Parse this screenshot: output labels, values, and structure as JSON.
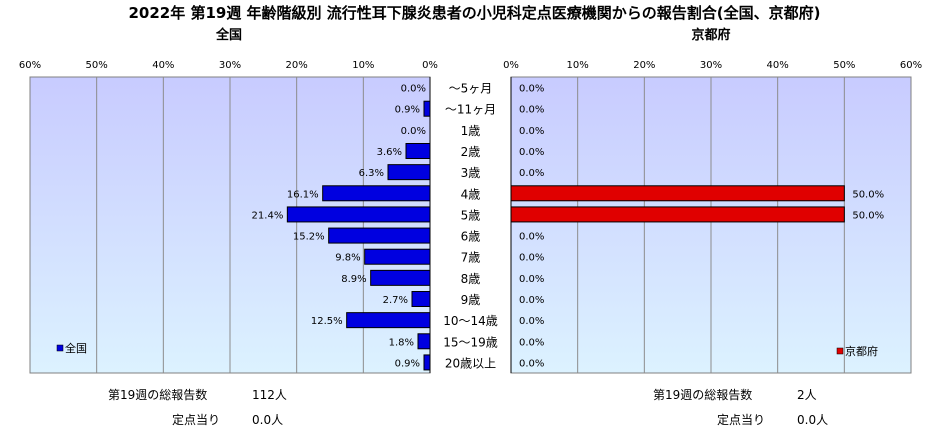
{
  "title": "2022年 第19週 年齢階級別 流行性耳下腺炎患者の小児科定点医療機関からの報告割合(全国、京都府)",
  "colors": {
    "plot_left_top": "#c8cbff",
    "plot_left_bottom": "#dcf2ff",
    "plot_right_top": "#c8cbff",
    "plot_right_bottom": "#dcf2ff",
    "national_bar": "#0000e0",
    "kyoto_bar": "#e00000"
  },
  "chart_data": [
    {
      "type": "bar",
      "orientation": "horizontal",
      "panel": "left",
      "title": "全国",
      "direction": "right-to-left",
      "xlim": [
        0,
        60
      ],
      "ticks": [
        "60%",
        "50%",
        "40%",
        "30%",
        "20%",
        "10%",
        "0%"
      ],
      "legend": {
        "label": "全国",
        "position": "bottom-left"
      },
      "categories": [
        "～5ヶ月",
        "～11ヶ月",
        "1歳",
        "2歳",
        "3歳",
        "4歳",
        "5歳",
        "6歳",
        "7歳",
        "8歳",
        "9歳",
        "10～14歳",
        "15～19歳",
        "20歳以上"
      ],
      "values": [
        0.0,
        0.9,
        0.0,
        3.6,
        6.3,
        16.1,
        21.4,
        15.2,
        9.8,
        8.9,
        2.7,
        12.5,
        1.8,
        0.9
      ],
      "labels": [
        "0.0%",
        "0.9%",
        "0.0%",
        "3.6%",
        "6.3%",
        "16.1%",
        "21.4%",
        "15.2%",
        "9.8%",
        "8.9%",
        "2.7%",
        "12.5%",
        "1.8%",
        "0.9%"
      ]
    },
    {
      "type": "bar",
      "orientation": "horizontal",
      "panel": "right",
      "title": "京都府",
      "direction": "left-to-right",
      "xlim": [
        0,
        60
      ],
      "ticks": [
        "0%",
        "10%",
        "20%",
        "30%",
        "40%",
        "50%",
        "60%"
      ],
      "legend": {
        "label": "京都府",
        "position": "bottom-right"
      },
      "categories": [
        "～5ヶ月",
        "～11ヶ月",
        "1歳",
        "2歳",
        "3歳",
        "4歳",
        "5歳",
        "6歳",
        "7歳",
        "8歳",
        "9歳",
        "10～14歳",
        "15～19歳",
        "20歳以上"
      ],
      "values": [
        0.0,
        0.0,
        0.0,
        0.0,
        0.0,
        50.0,
        50.0,
        0.0,
        0.0,
        0.0,
        0.0,
        0.0,
        0.0,
        0.0
      ],
      "labels": [
        "0.0%",
        "0.0%",
        "0.0%",
        "0.0%",
        "0.0%",
        "50.0%",
        "50.0%",
        "0.0%",
        "0.0%",
        "0.0%",
        "0.0%",
        "0.0%",
        "0.0%",
        "0.0%"
      ]
    }
  ],
  "summary": {
    "national": {
      "total_label": "第19週の総報告数",
      "total_value": "112人",
      "per_site_label": "定点当り",
      "per_site_value": "0.0人"
    },
    "kyoto": {
      "total_label": "第19週の総報告数",
      "total_value": "2人",
      "per_site_label": "定点当り",
      "per_site_value": "0.0人"
    }
  }
}
